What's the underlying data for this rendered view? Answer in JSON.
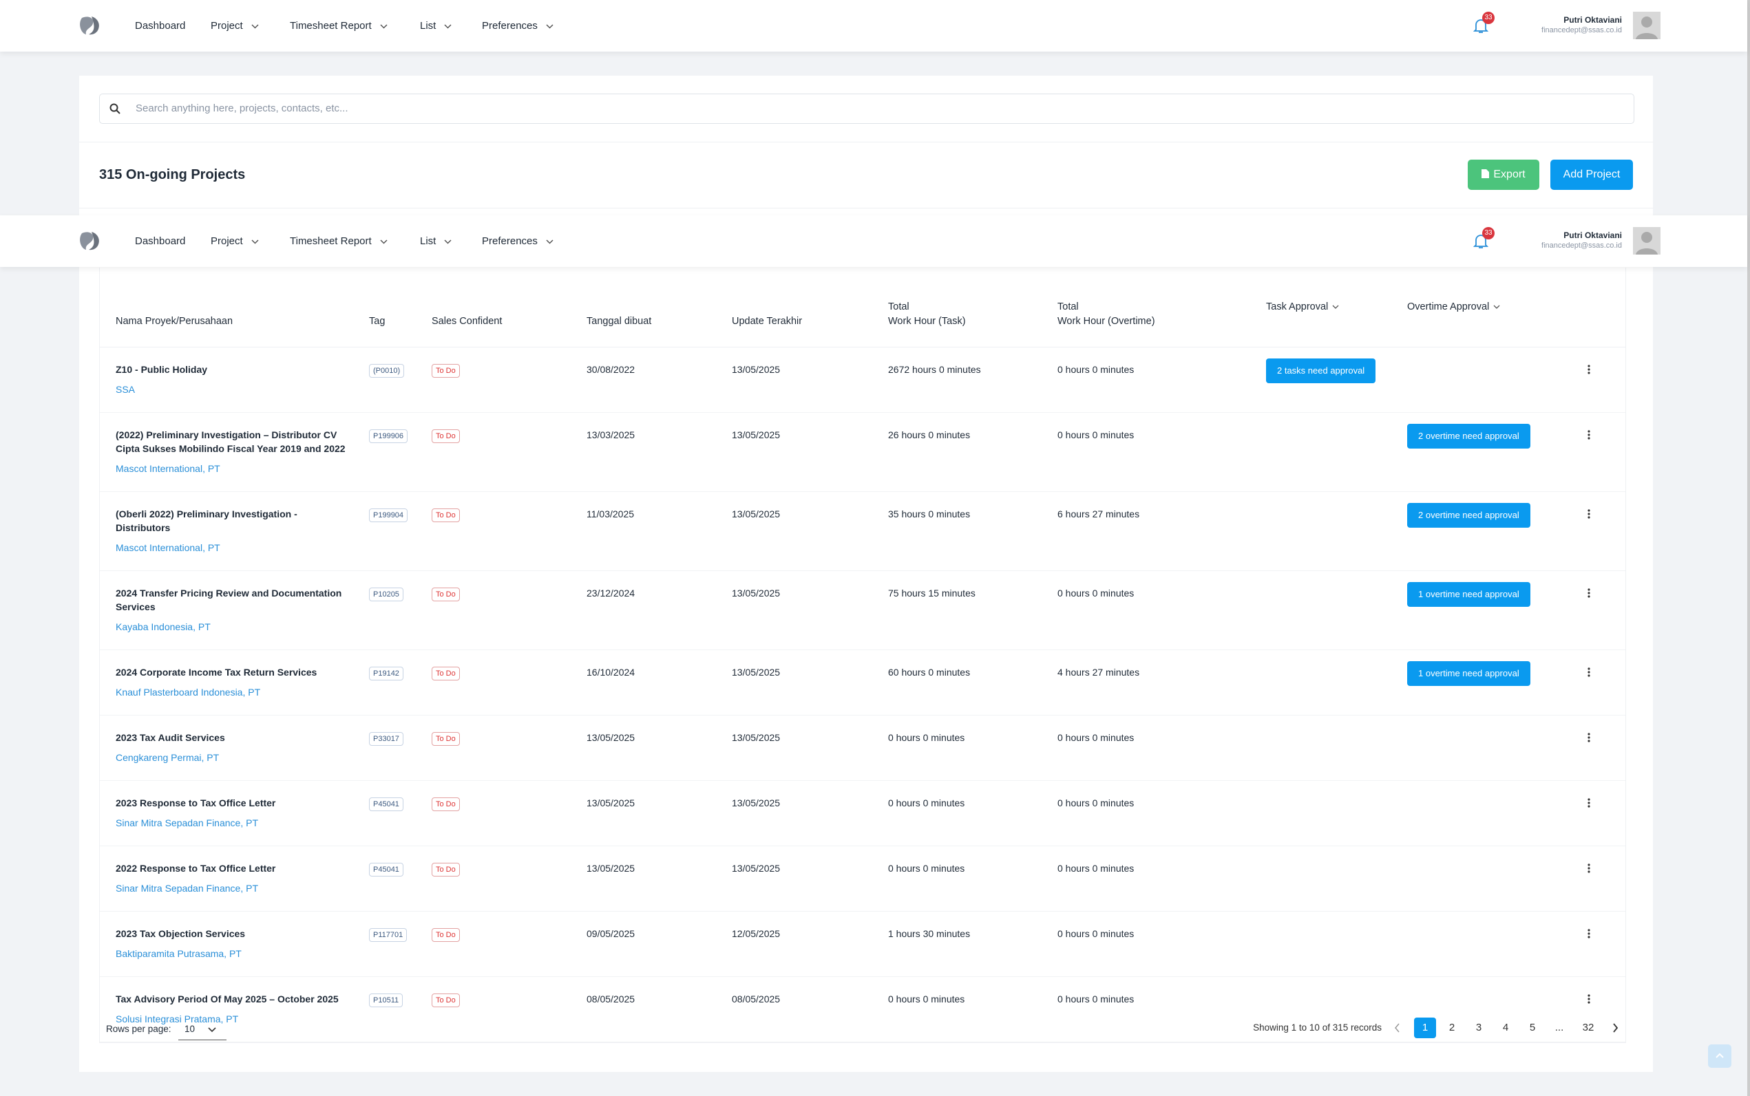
{
  "nav": [
    {
      "label": "Dashboard",
      "dropdown": false
    },
    {
      "label": "Project",
      "dropdown": true
    },
    {
      "label": "Timesheet Report",
      "dropdown": true
    },
    {
      "label": "List",
      "dropdown": true
    },
    {
      "label": "Preferences",
      "dropdown": true
    }
  ],
  "notifications": 33,
  "user": {
    "name": "Putri Oktaviani",
    "email": "financedept@ssas.co.id"
  },
  "search_placeholder": "Search anything here, projects, contacts, etc...",
  "page_title": "315 On-going Projects",
  "buttons": {
    "export": "Export",
    "add": "Add Project"
  },
  "table": {
    "headers": [
      [
        "Nama Proyek/Perusahaan"
      ],
      [
        "Tag"
      ],
      [
        "Sales Confident"
      ],
      [
        "Tanggal dibuat"
      ],
      [
        "Update Terakhir"
      ],
      [
        "Total",
        "Work Hour (Task)"
      ],
      [
        "Total",
        "Work Hour (Overtime)"
      ],
      [
        "Task Approval"
      ],
      [
        "Overtime Approval"
      ]
    ],
    "rows": [
      {
        "name": "Z10 - Public Holiday",
        "company": "SSA",
        "tag": "(P0010)",
        "status": "To Do",
        "created": "30/08/2022",
        "updated": "13/05/2025",
        "task": "2672 hours 0 minutes",
        "overtime": "0 hours 0 minutes",
        "task_approval": "2 tasks need approval"
      },
      {
        "name": "(2022) Preliminary Investigation – Distributor CV Cipta Sukses Mobilindo Fiscal Year 2019 and 2022",
        "company": "Mascot International, PT",
        "tag": "P199906",
        "status": "To Do",
        "created": "13/03/2025",
        "updated": "13/05/2025",
        "task": "26 hours 0 minutes",
        "overtime": "0 hours 0 minutes",
        "overtime_approval": "2 overtime need approval"
      },
      {
        "name": "(Oberli 2022) Preliminary Investigation - Distributors",
        "company": "Mascot International, PT",
        "tag": "P199904",
        "status": "To Do",
        "created": "11/03/2025",
        "updated": "13/05/2025",
        "task": "35 hours 0 minutes",
        "overtime": "6 hours 27 minutes",
        "overtime_approval": "2 overtime need approval"
      },
      {
        "name": "2024 Transfer Pricing Review and Documentation Services",
        "company": "Kayaba Indonesia, PT",
        "tag": "P10205",
        "status": "To Do",
        "created": "23/12/2024",
        "updated": "13/05/2025",
        "task": "75 hours 15 minutes",
        "overtime": "0 hours 0 minutes",
        "overtime_approval": "1 overtime need approval"
      },
      {
        "name": "2024 Corporate Income Tax Return Services",
        "company": "Knauf Plasterboard Indonesia, PT",
        "tag": "P19142",
        "status": "To Do",
        "created": "16/10/2024",
        "updated": "13/05/2025",
        "task": "60 hours 0 minutes",
        "overtime": "4 hours 27 minutes",
        "overtime_approval": "1 overtime need approval"
      },
      {
        "name": "2023 Tax Audit Services",
        "company": "Cengkareng Permai, PT",
        "tag": "P33017",
        "status": "To Do",
        "created": "13/05/2025",
        "updated": "13/05/2025",
        "task": "0 hours 0 minutes",
        "overtime": "0 hours 0 minutes"
      },
      {
        "name": "2023 Response to Tax Office Letter",
        "company": "Sinar Mitra Sepadan Finance, PT",
        "tag": "P45041",
        "status": "To Do",
        "created": "13/05/2025",
        "updated": "13/05/2025",
        "task": "0 hours 0 minutes",
        "overtime": "0 hours 0 minutes"
      },
      {
        "name": "2022 Response to Tax Office Letter",
        "company": "Sinar Mitra Sepadan Finance, PT",
        "tag": "P45041",
        "status": "To Do",
        "created": "13/05/2025",
        "updated": "13/05/2025",
        "task": "0 hours 0 minutes",
        "overtime": "0 hours 0 minutes"
      },
      {
        "name": "2023 Tax Objection Services",
        "company": "Baktiparamita Putrasama, PT",
        "tag": "P117701",
        "status": "To Do",
        "created": "09/05/2025",
        "updated": "12/05/2025",
        "task": "1 hours 30 minutes",
        "overtime": "0 hours 0 minutes"
      },
      {
        "name": "Tax Advisory Period Of May 2025 – October 2025",
        "company": "Solusi Integrasi Pratama, PT",
        "tag": "P10511",
        "status": "To Do",
        "created": "08/05/2025",
        "updated": "08/05/2025",
        "task": "0 hours 0 minutes",
        "overtime": "0 hours 0 minutes"
      }
    ]
  },
  "footer": {
    "rows_label": "Rows per page:",
    "rows_value": 10,
    "showing": "Showing 1 to 10 of 315 records",
    "pages": [
      1,
      2,
      3,
      4,
      5,
      "...",
      32
    ],
    "current_page": 1
  }
}
